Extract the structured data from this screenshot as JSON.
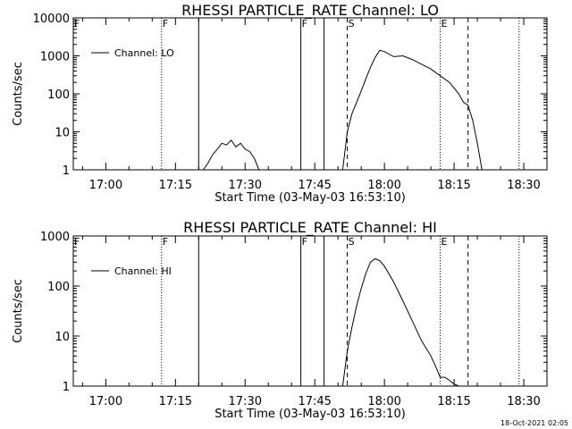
{
  "chart_data": [
    {
      "type": "line",
      "title": "RHESSI PARTICLE_RATE Channel: LO",
      "xlabel": "Start Time (03-May-03 16:53:10)",
      "ylabel": "Counts/sec",
      "yscale": "log",
      "ylim": [
        1,
        10000
      ],
      "yticks": [
        "1",
        "10",
        "100",
        "1000",
        "10000"
      ],
      "xlim": [
        "16:53",
        "18:35"
      ],
      "xticks": [
        "17:00",
        "17:15",
        "17:30",
        "17:45",
        "18:00",
        "18:15",
        "18:30"
      ],
      "legend": {
        "label": "Channel: LO",
        "placement": "top-left"
      },
      "flag_markers": [
        {
          "label": "F",
          "time": "16:53",
          "style": "none"
        },
        {
          "label": "F",
          "time": "17:12",
          "style": "dotted"
        },
        {
          "time": "17:20",
          "style": "solid"
        },
        {
          "label": "F",
          "time": "17:42",
          "style": "solid"
        },
        {
          "time": "17:47",
          "style": "solid"
        },
        {
          "label": "S",
          "time": "17:52",
          "style": "dashed"
        },
        {
          "label": "E",
          "time": "18:12",
          "style": "dotted"
        },
        {
          "time": "18:18",
          "style": "dashed"
        },
        {
          "time": "18:29",
          "style": "dotted"
        }
      ],
      "series": [
        {
          "name": "Channel: LO",
          "segments": [
            {
              "x": [
                "17:21",
                "17:22",
                "17:23",
                "17:24",
                "17:25",
                "17:26",
                "17:27",
                "17:28",
                "17:29",
                "17:30",
                "17:31",
                "17:32",
                "17:33"
              ],
              "y": [
                1,
                1.5,
                2.5,
                3.5,
                5,
                4.5,
                6,
                4,
                5,
                3.5,
                3,
                2,
                1
              ]
            },
            {
              "x": [
                "17:51",
                "17:52",
                "17:53",
                "17:54",
                "17:55",
                "17:56",
                "17:57",
                "17:58",
                "17:59",
                "18:00",
                "18:02",
                "18:04",
                "18:06",
                "18:08",
                "18:10",
                "18:12",
                "18:14",
                "18:16",
                "18:17",
                "18:18",
                "18:19",
                "18:20",
                "18:21"
              ],
              "y": [
                1,
                10,
                30,
                60,
                120,
                250,
                500,
                900,
                1400,
                1300,
                950,
                1000,
                800,
                600,
                450,
                300,
                200,
                100,
                60,
                50,
                20,
                5,
                1
              ]
            }
          ]
        }
      ]
    },
    {
      "type": "line",
      "title": "RHESSI PARTICLE_RATE Channel: HI",
      "xlabel": "Start Time (03-May-03 16:53:10)",
      "ylabel": "Counts/sec",
      "yscale": "log",
      "ylim": [
        1,
        1000
      ],
      "yticks": [
        "1",
        "10",
        "100",
        "1000"
      ],
      "xlim": [
        "16:53",
        "18:35"
      ],
      "xticks": [
        "17:00",
        "17:15",
        "17:30",
        "17:45",
        "18:00",
        "18:15",
        "18:30"
      ],
      "legend": {
        "label": "Channel: HI",
        "placement": "top-left"
      },
      "flag_markers": [
        {
          "label": "F",
          "time": "16:53",
          "style": "none"
        },
        {
          "label": "F",
          "time": "17:12",
          "style": "dotted"
        },
        {
          "time": "17:20",
          "style": "solid"
        },
        {
          "label": "F",
          "time": "17:42",
          "style": "solid"
        },
        {
          "time": "17:47",
          "style": "solid"
        },
        {
          "label": "S",
          "time": "17:52",
          "style": "dashed"
        },
        {
          "label": "E",
          "time": "18:12",
          "style": "dotted"
        },
        {
          "time": "18:18",
          "style": "dashed"
        },
        {
          "time": "18:29",
          "style": "dotted"
        }
      ],
      "series": [
        {
          "name": "Channel: HI",
          "segments": [
            {
              "x": [
                "17:51",
                "17:52",
                "17:53",
                "17:54",
                "17:55",
                "17:56",
                "17:57",
                "17:58",
                "17:59",
                "18:00",
                "18:02",
                "18:04",
                "18:06",
                "18:08",
                "18:10",
                "18:11",
                "18:12",
                "18:13",
                "18:14",
                "18:15",
                "18:16"
              ],
              "y": [
                1,
                5,
                15,
                40,
                90,
                180,
                300,
                350,
                320,
                250,
                120,
                50,
                20,
                8,
                4,
                2.5,
                1.5,
                1.5,
                1.3,
                1.1,
                1
              ]
            }
          ]
        }
      ]
    }
  ],
  "footer": {
    "timestamp": "18-Oct-2021 02:05"
  }
}
